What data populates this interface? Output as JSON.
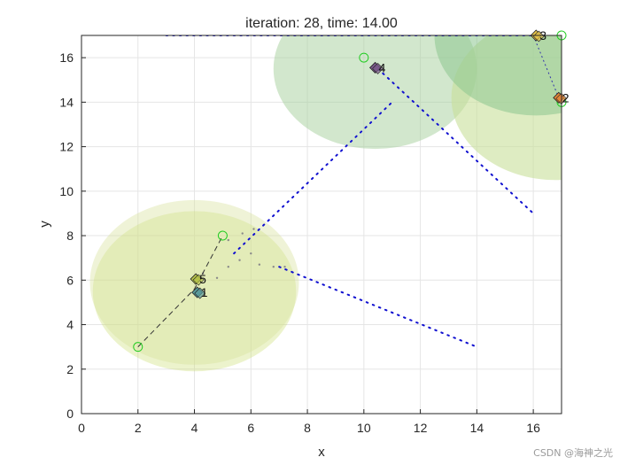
{
  "chart_data": {
    "type": "scatter",
    "title": "iteration: 28, time: 14.00",
    "xlabel": "x",
    "ylabel": "y",
    "xlim": [
      0,
      17
    ],
    "ylim": [
      0,
      17
    ],
    "xticks": [
      0,
      2,
      4,
      6,
      8,
      10,
      12,
      14,
      16
    ],
    "yticks": [
      0,
      2,
      4,
      6,
      8,
      10,
      12,
      14,
      16
    ],
    "xtick_labels": [
      "0",
      "2",
      "4",
      "6",
      "8",
      "10",
      "12",
      "14",
      "16"
    ],
    "ytick_labels": [
      "0",
      "2",
      "4",
      "6",
      "8",
      "10",
      "12",
      "14",
      "16"
    ],
    "grid": true,
    "coverage_circles": [
      {
        "cx": 4.0,
        "cy": 5.5,
        "r": 3.6,
        "color": "#c8dc6e",
        "alpha": 0.35
      },
      {
        "cx": 4.0,
        "cy": 5.9,
        "r": 3.7,
        "color": "#d6e29a",
        "alpha": 0.4
      },
      {
        "cx": 10.4,
        "cy": 15.5,
        "r": 3.6,
        "color": "#a6cf9c",
        "alpha": 0.5
      },
      {
        "cx": 16.8,
        "cy": 14.2,
        "r": 3.7,
        "color": "#c8df9a",
        "alpha": 0.6
      },
      {
        "cx": 16.1,
        "cy": 17.0,
        "r": 3.6,
        "color": "#8dc68f",
        "alpha": 0.55
      }
    ],
    "target_trails": [
      {
        "name": "trail-a",
        "points": [
          [
            3.0,
            17.0
          ],
          [
            16.5,
            17.0
          ]
        ]
      },
      {
        "name": "trail-b",
        "points": [
          [
            10.5,
            15.5
          ],
          [
            16.0,
            9.0
          ]
        ]
      },
      {
        "name": "trail-c",
        "points": [
          [
            7.0,
            6.6
          ],
          [
            14.0,
            3.0
          ]
        ]
      },
      {
        "name": "trail-d",
        "points": [
          [
            5.4,
            7.2
          ],
          [
            11.0,
            14.0
          ]
        ]
      }
    ],
    "agent_paths": [
      {
        "name": "path-5",
        "points": [
          [
            2.0,
            3.0
          ],
          [
            4.0,
            5.6
          ],
          [
            5.0,
            8.0
          ]
        ]
      },
      {
        "name": "path-2",
        "points": [
          [
            16.0,
            17.0
          ],
          [
            16.9,
            14.2
          ]
        ]
      }
    ],
    "start_markers": [
      {
        "x": 2.0,
        "y": 3.0
      },
      {
        "x": 5.0,
        "y": 8.0
      },
      {
        "x": 10.0,
        "y": 16.0
      },
      {
        "x": 17.0,
        "y": 17.0
      },
      {
        "x": 17.0,
        "y": 14.0
      }
    ],
    "agents": [
      {
        "id": "1",
        "x": 4.1,
        "y": 5.45,
        "color": "#5a9a9a"
      },
      {
        "id": "2",
        "x": 16.9,
        "y": 14.2,
        "color": "#e0853a"
      },
      {
        "id": "3",
        "x": 16.1,
        "y": 17.0,
        "color": "#e3c24a"
      },
      {
        "id": "4",
        "x": 10.4,
        "y": 15.55,
        "color": "#7a5a8a"
      },
      {
        "id": "5",
        "x": 4.05,
        "y": 6.05,
        "color": "#b5c24a"
      }
    ],
    "gray_scatter": [
      [
        4.3,
        6.3
      ],
      [
        4.8,
        6.1
      ],
      [
        5.2,
        6.6
      ],
      [
        5.6,
        6.9
      ],
      [
        6.0,
        7.2
      ],
      [
        6.3,
        6.7
      ],
      [
        6.8,
        6.6
      ],
      [
        7.2,
        6.6
      ],
      [
        5.2,
        7.8
      ],
      [
        5.7,
        8.1
      ],
      [
        6.1,
        8.3
      ]
    ]
  },
  "watermark": "CSDN @海神之光",
  "colors": {
    "trail": "#1010d0",
    "grid": "#e5e5e5",
    "start_marker": "#22cc22"
  }
}
